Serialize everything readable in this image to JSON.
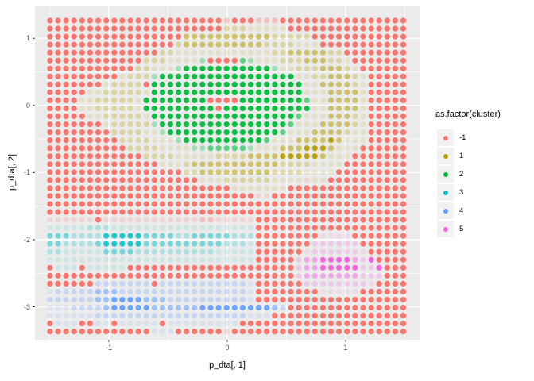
{
  "style": {
    "panel_bg": "#EBEBEB",
    "grid_color": "#FFFFFF",
    "tick_mark_color": "#333333",
    "tick_text_color": "#4D4D4D",
    "legend_key_bg": "#F2F2F2"
  },
  "legend": {
    "title": "as.factor(cluster)",
    "items": [
      {
        "label": "-1",
        "color": "#F8766D"
      },
      {
        "label": "1",
        "color": "#B79F00"
      },
      {
        "label": "2",
        "color": "#00BA38"
      },
      {
        "label": "3",
        "color": "#00BFC4"
      },
      {
        "label": "4",
        "color": "#619CFF"
      },
      {
        "label": "5",
        "color": "#F564E3"
      }
    ]
  },
  "chart_data": {
    "type": "scatter",
    "title": "",
    "xlabel": "p_dta[, 1]",
    "ylabel": "p_dta[, 2]",
    "legend_title": "as.factor(cluster)",
    "legend_position": "right",
    "grid_on": true,
    "x_axis": {
      "title": "p_dta[, 1]",
      "domain": [
        -1.624,
        1.624
      ],
      "ticks": [
        {
          "v": -1,
          "label": "-1"
        },
        {
          "v": 0,
          "label": "0"
        },
        {
          "v": 1,
          "label": "1"
        }
      ],
      "minor": [
        -1.5,
        -0.5,
        0.5,
        1.5
      ]
    },
    "y_axis": {
      "title": "p_dta[, 2]",
      "domain": [
        -3.49,
        1.475
      ],
      "ticks": [
        {
          "v": 1,
          "label": "1"
        },
        {
          "v": 0,
          "label": "0"
        },
        {
          "v": -1,
          "label": "-1"
        },
        {
          "v": -2,
          "label": "-2"
        },
        {
          "v": -3,
          "label": "-3"
        }
      ],
      "minor": [
        0.5,
        -0.5,
        -1.5,
        -2.5
      ]
    },
    "clusters": [
      {
        "id": "-1",
        "color": "#F8766D",
        "meaning": "noise"
      },
      {
        "id": "1",
        "color": "#B79F00",
        "meaning": "olive ring around center"
      },
      {
        "id": "2",
        "color": "#00BA38",
        "meaning": "central disk at (0,0)"
      },
      {
        "id": "3",
        "color": "#00BFC4",
        "meaning": "stripe band near y=-2"
      },
      {
        "id": "4",
        "color": "#619CFF",
        "meaning": "stripe band near y=-3"
      },
      {
        "id": "5",
        "color": "#F564E3",
        "meaning": "blob near (1,-2.5)"
      }
    ],
    "grid": {
      "cols": 45,
      "rows": 40,
      "x0": -1.497,
      "dx": 0.0678,
      "y0": 1.262,
      "dy": -0.1187,
      "dot_radius_px": 3.6,
      "palette": {
        "R": {
          "cluster": "-1",
          "color": "#F8766D",
          "alpha": 1.0
        },
        "r": {
          "cluster": "-1",
          "color": "#F8766D",
          "alpha": 0.35
        },
        "q": {
          "cluster": "-1",
          "color": "#F8766D",
          "alpha": 0.18
        },
        "Y": {
          "cluster": "1",
          "color": "#B79F00",
          "alpha": 0.95
        },
        "y": {
          "cluster": "1",
          "color": "#B79F00",
          "alpha": 0.55
        },
        "x": {
          "cluster": "1",
          "color": "#B79F00",
          "alpha": 0.3
        },
        "w": {
          "cluster": "1",
          "color": "#B79F00",
          "alpha": 0.14
        },
        "G": {
          "cluster": "2",
          "color": "#00BA38",
          "alpha": 0.95
        },
        "g": {
          "cluster": "2",
          "color": "#00BA38",
          "alpha": 0.6
        },
        "h": {
          "cluster": "2",
          "color": "#00BA38",
          "alpha": 0.3
        },
        "T": {
          "cluster": "3",
          "color": "#00BFC4",
          "alpha": 0.85
        },
        "t": {
          "cluster": "3",
          "color": "#00BFC4",
          "alpha": 0.5
        },
        "u": {
          "cluster": "3",
          "color": "#00BFC4",
          "alpha": 0.26
        },
        "v": {
          "cluster": "3",
          "color": "#00BFC4",
          "alpha": 0.12
        },
        "B": {
          "cluster": "4",
          "color": "#619CFF",
          "alpha": 0.9
        },
        "b": {
          "cluster": "4",
          "color": "#619CFF",
          "alpha": 0.55
        },
        "c": {
          "cluster": "4",
          "color": "#619CFF",
          "alpha": 0.26
        },
        "d": {
          "cluster": "4",
          "color": "#619CFF",
          "alpha": 0.12
        },
        "M": {
          "cluster": "5",
          "color": "#F564E3",
          "alpha": 1.0
        },
        "m": {
          "cluster": "5",
          "color": "#F564E3",
          "alpha": 0.5
        },
        "n": {
          "cluster": "5",
          "color": "#F564E3",
          "alpha": 0.25
        },
        "o": {
          "cluster": "5",
          "color": "#F564E3",
          "alpha": 0.12
        }
      },
      "rows_encoded": [
        "RRRRRRRRRRRRRRRRRRRRRRrRRRrrrRRRRRRRRRRRRRRRR",
        "RRRRRRRRRRRRRRRRRRRRRRxxxwwwwwRRRRRRRRRRRRRRR",
        "RRRRRRRRRRRRRRRRRyyyyyyyyyyyxxxxxRRRRRRRRRRRR",
        "RRRRRRRRRRRRRRRRxyyyyyyyyyyxxxxwwwRRRRRRRRRRR",
        "RRRRRRRRRRRRRRxxwwwwwwwwwwwwxxyyyyyxxRRRRRRRR",
        "RRRRRRRRRRRRxxxwwwwhRRRRghwwwxxxyyyxxwRRRRRRR",
        "RRRRRRRRRRRxxwwwhGGGGGGGGGGGhwwxxxyyyxwRRRRRR",
        "RRRRRRRRRwxxxhGGGGGGGGGGGGGGGGGwwxxyyyxwRRRRR",
        "RRRRRRRwxxxxRGGGGGGGGGGGGGGGGGGGwwyyyyxwRRRRR",
        "RRRRRwwxxxxxwGGGGGGGGGGGGGGGGGGGwwwyyyywRRRRR",
        "RRRRwwxxxxxwGGGGGGGGRRRRGGGGGGGGgwwyyyywRRRRR",
        "RRRRwwxxxxxwGGGGGGGGGRGGGGGGGGGGGwwyyyywRRRRR",
        "RRRRRwwxxxxxwGGGGGGGGGGGGGGGGGGgwwwyyyxwRRRRR",
        "RRRRRRRwxxxxxhGGGGGGGGGGGGGGGGgwwwyyyyxwRRRRR",
        "RRRRRRRRxxxxwwhGGGGGGGGGGGGGGgwwwyyyyxwwRRRRR",
        "RRRRRRRRRxxxxwwwhGGGGGGGGGGgwwwyyyyYywwwRRRRR",
        "RRRRRRRRRRxxxxwwwwhhggggghwwwyyyYYYywwwRRRRRR",
        "RRRRRRRRRRRRxxxxwwwwwxxxxyyyyYYYYYywwwRRRRRRR",
        "RRRRRRRRRRRRRRwwwxyyyyyyyyyyyxxxxwwwwRRRRRRRR",
        "RRRRRRRRRRRRRRRRRxxyyyyyyyyyxxxxwwwwRRRRRRRRR",
        "RRRRRRRRRRRRRRRRRRRwwwxxxxxxwwwwqwwRRRRRRRRRR",
        "RRRRRRRRRRRRRRRRRRRRRRRwwwwwwwRRRRRRRRRRRRRRR",
        "RRRRRRRRRRRRRRRRRRRRRRRRRRqqRRRRRRRRRRRRRRRRR",
        "RRRRRRRRRRRRRRRRRRRRRRRRRRRRRRRRRRRRRRRRRRRRR",
        "RRRRRRRRRRRRRRRRRRRRRRRRRRRRRRRRRRRRRRRRRRRRR",
        "qqqqqqRqqqqqqqqqqqqrrqqqqqRRRRRRRRRRRRRRRRRRR",
        "vvvvvuuuvvvvvvvvvvvvvvvvvvRRRRRRRRRRRRRRRRRRR",
        "tttuuuuTTTTTttttuutttttuuuRRRRRRRRooooRRRRRRR",
        "ttuuuutTTTTTttttttttttuuuvRRRRRRRnnnnnnRRRRRR",
        "uuvvvvvttttuuuuuuuuuuvvvvvRRRRRRonnnnnnoRRRRR",
        "vvvvvvvvvvvvvvvvvvvvvvvvvvRRRRRnmmMMMMmnMRRRR",
        "RvvvRvvvvvRRRRRRRRRRRRRRRRRRRRRnmmMMMMMnnMRRR",
        "RRRRRRRRRRRRRRRRRRRRRRRRRRRRRRRnmmmmmmmnnnRRR",
        "RRRRRRcccccccRcccccccccccdRRRRRRnnnnnnnnoRRRR",
        "dcccccbbbccccccccccccccccdRRRRRRRRoooooRRRRRR",
        "ccccccbbBBBBbbbccccccccccdRRRRRRRRRRRRRRRRRRR",
        "dddccccbBBBBBbbbbbbBBBBBBBBBbcRRRRRRRRRRRRRRR",
        "ddddddcccccccccccccccccccdddRRRRRRRRRRRRRRRRR",
        "RdddRRddRdddddRdddddddddRRRRRRRRRRRRRRRRRRRRR",
        "RRRRRRRRRRRRRdddRRRRRRqRRRRRRRRRRRRRRRRRRRRRR"
      ]
    }
  }
}
